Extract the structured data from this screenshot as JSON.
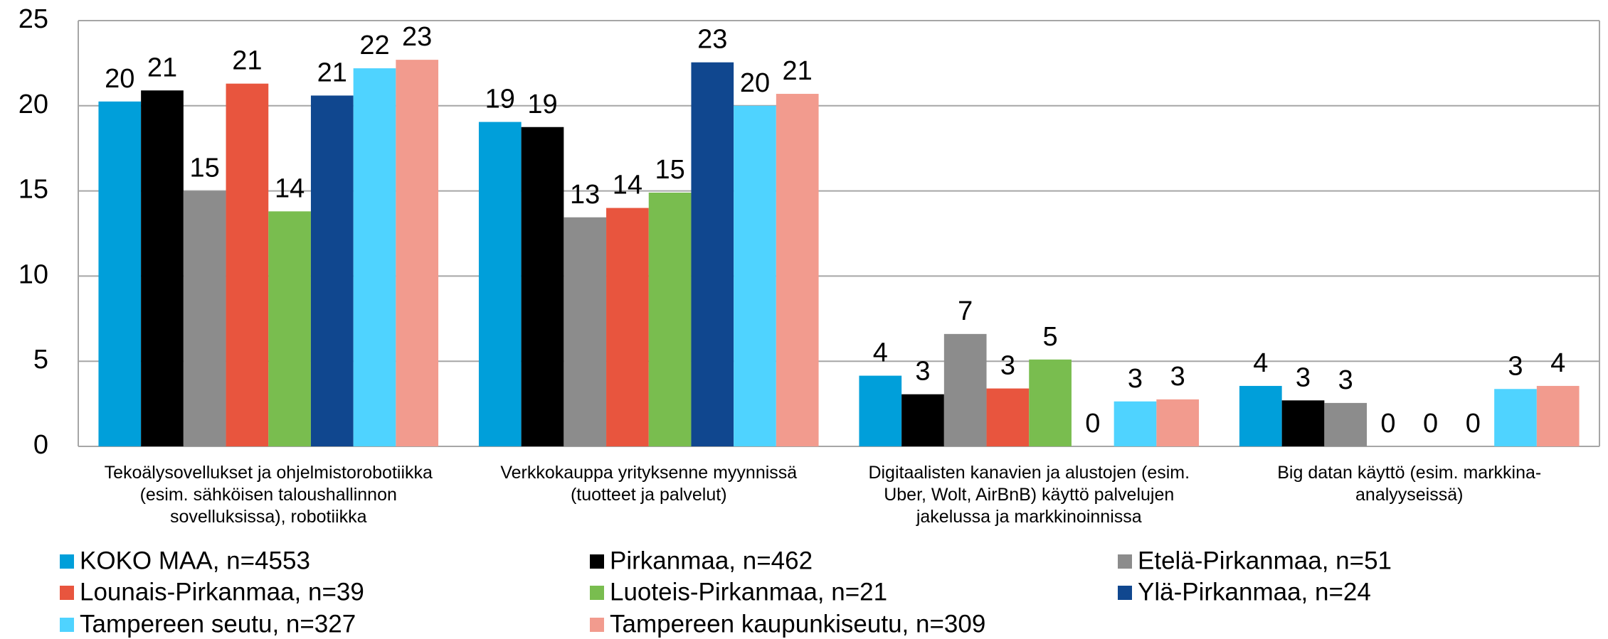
{
  "chart_data": {
    "type": "bar",
    "categories": [
      "Tekoälysovellukset ja ohjelmistorobotiikka (esim. sähköisen taloushallinnon sovelluksissa), robotiikka",
      "Verkkokauppa yrityksenne myynnissä (tuotteet ja palvelut)",
      "Digitaalisten kanavien ja alustojen (esim. Uber, Wolt, AirBnB) käyttö palvelujen jakelussa ja markkinoinnissa",
      "Big datan käyttö (esim. markkina-analyyseissä)"
    ],
    "series": [
      {
        "name": "KOKO MAA, n=4553",
        "color": "#009fda",
        "values": [
          20.25,
          19.05,
          4.15,
          3.55
        ],
        "value_labels": [
          "20",
          "19",
          "4",
          "4"
        ]
      },
      {
        "name": "Pirkanmaa, n=462",
        "color": "#000000",
        "values": [
          20.9,
          18.75,
          3.06,
          2.7
        ],
        "value_labels": [
          "21",
          "19",
          "3",
          "3"
        ]
      },
      {
        "name": "Etelä-Pirkanmaa, n=51",
        "color": "#8c8c8c",
        "values": [
          15.0,
          13.45,
          6.6,
          2.55
        ],
        "value_labels": [
          "15",
          "13",
          "7",
          "3"
        ]
      },
      {
        "name": "Lounais-Pirkanmaa, n=39",
        "color": "#e8553e",
        "values": [
          21.3,
          14.0,
          3.4,
          0
        ],
        "value_labels": [
          "21",
          "14",
          "3",
          "0"
        ]
      },
      {
        "name": "Luoteis-Pirkanmaa, n=21",
        "color": "#79bd4f",
        "values": [
          13.8,
          14.9,
          5.1,
          0
        ],
        "value_labels": [
          "14",
          "15",
          "5",
          "0"
        ]
      },
      {
        "name": "Ylä-Pirkanmaa, n=24",
        "color": "#10478f",
        "values": [
          20.6,
          22.55,
          0,
          0
        ],
        "value_labels": [
          "21",
          "23",
          "0",
          "0"
        ]
      },
      {
        "name": "Tampereen seutu, n=327",
        "color": "#4fd3ff",
        "values": [
          22.2,
          20.0,
          2.64,
          3.37
        ],
        "value_labels": [
          "22",
          "20",
          "3",
          "3"
        ]
      },
      {
        "name": "Tampereen kaupunkiseutu, n=309",
        "color": "#f29b8e",
        "values": [
          22.7,
          20.7,
          2.76,
          3.55
        ],
        "value_labels": [
          "23",
          "21",
          "3",
          "4"
        ]
      }
    ],
    "ylim": [
      0,
      25
    ],
    "yticks": [
      0,
      5,
      10,
      15,
      20,
      25
    ],
    "grid": true,
    "legend": "bottom"
  }
}
